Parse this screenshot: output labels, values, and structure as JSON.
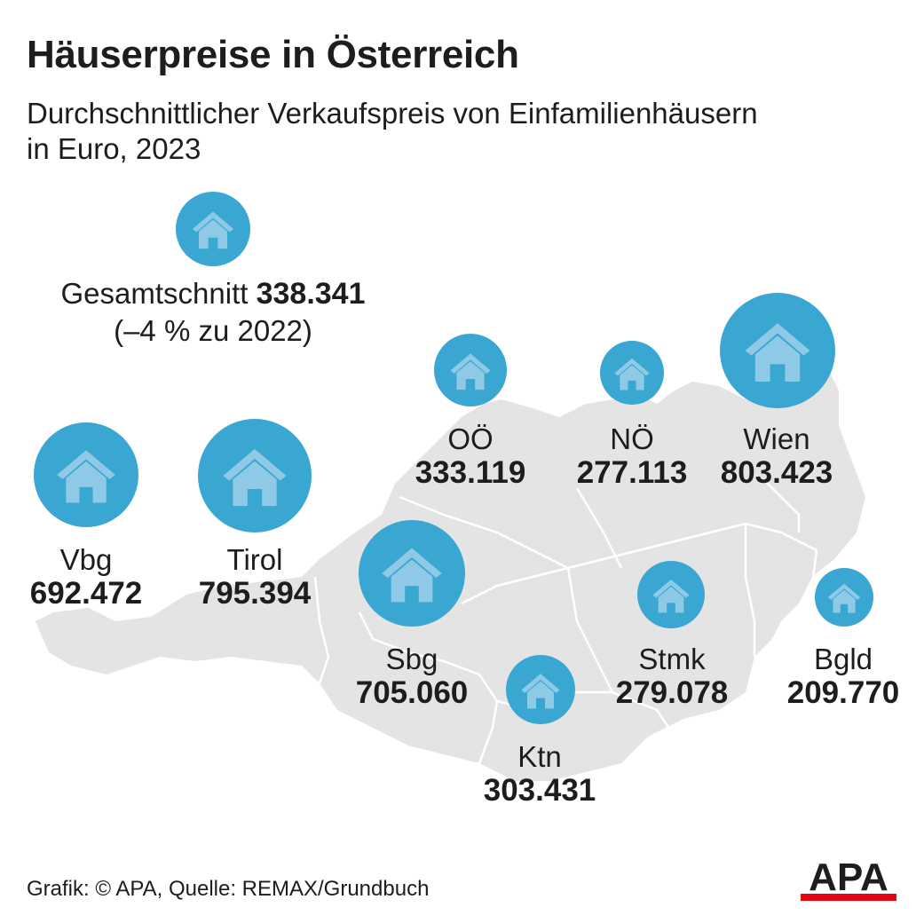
{
  "title": "Häuserpreise in Österreich",
  "subtitle": {
    "line1": "Durchschnittlicher Verkaufspreis von Einfamilienhäusern",
    "line2": "in Euro, 2023"
  },
  "overall": {
    "label": "Gesamtschnitt",
    "value": "338.341",
    "change": "(–4 % zu 2022)"
  },
  "colors": {
    "bubble": "#3aa6d2",
    "house_icon": "#8ecae6",
    "map_fill": "#e4e4e4",
    "map_borders": "#ffffff",
    "apa_red": "#e30613"
  },
  "icon": "house-icon",
  "regions": [
    {
      "id": "vbg",
      "name": "Vbg",
      "value": "692.472"
    },
    {
      "id": "tirol",
      "name": "Tirol",
      "value": "795.394"
    },
    {
      "id": "sbg",
      "name": "Sbg",
      "value": "705.060"
    },
    {
      "id": "ooe",
      "name": "OÖ",
      "value": "333.119"
    },
    {
      "id": "noe",
      "name": "NÖ",
      "value": "277.113"
    },
    {
      "id": "wien",
      "name": "Wien",
      "value": "803.423"
    },
    {
      "id": "stmk",
      "name": "Stmk",
      "value": "279.078"
    },
    {
      "id": "bgld",
      "name": "Bgld",
      "value": "209.770"
    },
    {
      "id": "ktn",
      "name": "Ktn",
      "value": "303.431"
    }
  ],
  "footer": "Grafik: © APA, Quelle: REMAX/Grundbuch",
  "logo_text": "APA"
}
